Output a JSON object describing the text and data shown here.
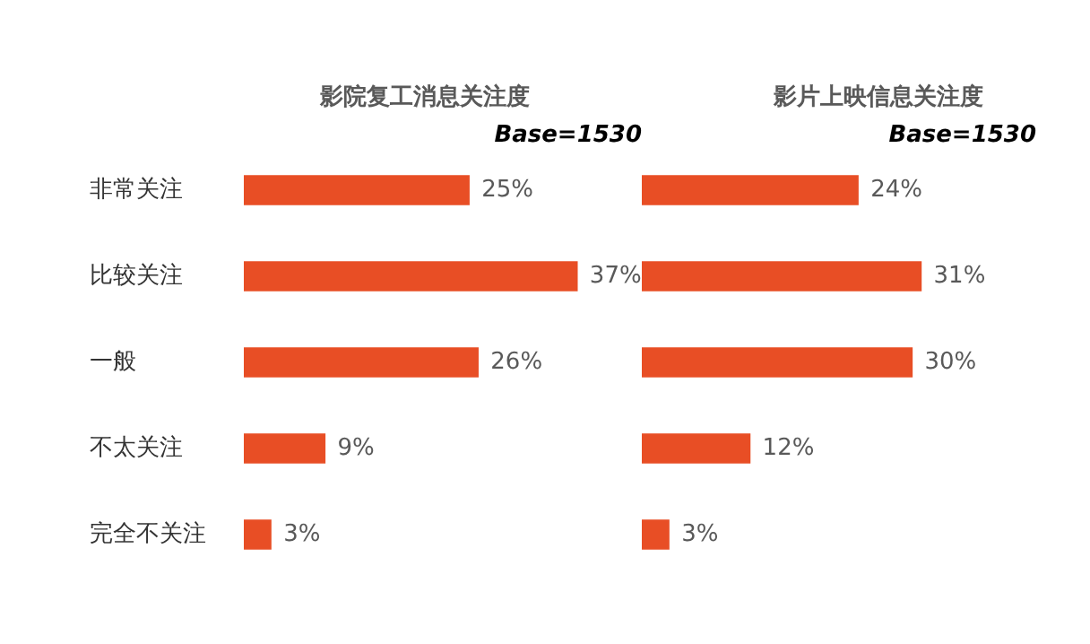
{
  "chart_data": [
    {
      "type": "bar",
      "orientation": "horizontal",
      "title": "影院复工消息关注度",
      "annotations": [
        "Base=1530"
      ],
      "categories": [
        "非常关注",
        "比较关注",
        "一般",
        "不太关注",
        "完全不关注"
      ],
      "values": [
        25,
        37,
        26,
        9,
        3
      ],
      "value_labels": [
        "25%",
        "37%",
        "26%",
        "9%",
        "3%"
      ],
      "color": "#e84e25",
      "tick_labels": "y"
    },
    {
      "type": "bar",
      "orientation": "horizontal",
      "title": "影片上映信息关注度",
      "annotations": [
        "Base=1530"
      ],
      "categories": [
        null,
        null,
        null,
        null,
        null
      ],
      "values": [
        24,
        31,
        30,
        12,
        3
      ],
      "value_labels": [
        "24%",
        "31%",
        "30%",
        "12%",
        "3%"
      ],
      "color": "#e84e25",
      "tick_labels": false
    }
  ]
}
